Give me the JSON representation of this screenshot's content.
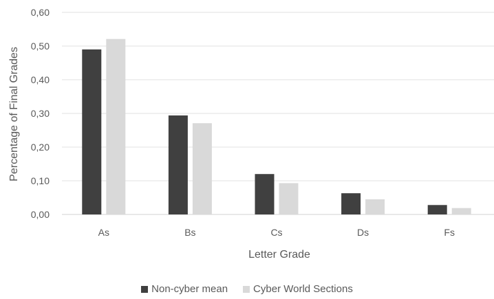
{
  "chart_data": {
    "type": "bar",
    "title": "",
    "xlabel": "Letter Grade",
    "ylabel": "Percentage of Final Grades",
    "categories": [
      "As",
      "Bs",
      "Cs",
      "Ds",
      "Fs"
    ],
    "ylim": [
      0,
      0.6
    ],
    "yticks": [
      "0,00",
      "0,10",
      "0,20",
      "0,30",
      "0,40",
      "0,50",
      "0,60"
    ],
    "grid": true,
    "legend_position": "bottom",
    "series": [
      {
        "name": "Non-cyber mean",
        "color": "#404040",
        "values": [
          0.49,
          0.294,
          0.12,
          0.063,
          0.028
        ]
      },
      {
        "name": "Cyber World Sections",
        "color": "#d9d9d9",
        "values": [
          0.521,
          0.271,
          0.093,
          0.045,
          0.019
        ]
      }
    ]
  }
}
